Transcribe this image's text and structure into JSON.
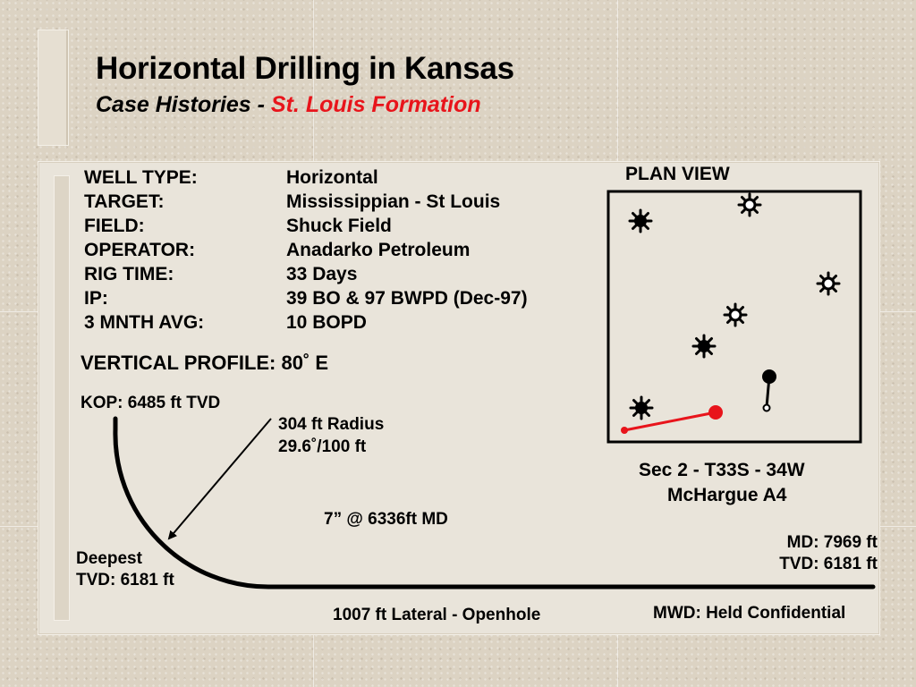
{
  "title": "Horizontal Drilling in Kansas",
  "subtitle": {
    "prefix": "Case Histories - ",
    "highlight": "St. Louis Formation",
    "highlight_color": "#e8141b"
  },
  "well_info": [
    {
      "label": "WELL TYPE:",
      "value": "Horizontal"
    },
    {
      "label": "TARGET:",
      "value": "Mississippian - St Louis"
    },
    {
      "label": "FIELD:",
      "value": "Shuck Field"
    },
    {
      "label": "OPERATOR:",
      "value": "Anadarko Petroleum"
    },
    {
      "label": "RIG TIME:",
      "value": "33 Days"
    },
    {
      "label": "IP:",
      "value": "39 BO & 97 BWPD (Dec-97)"
    },
    {
      "label": "3 MNTH AVG:",
      "value": "10 BOPD"
    }
  ],
  "vertical_profile": {
    "heading": "VERTICAL PROFILE: 80˚ E",
    "kop": "KOP: 6485 ft TVD",
    "radius_line1": "304 ft Radius",
    "radius_line2": "29.6˚/100 ft",
    "casing": "7” @ 6336ft MD",
    "deepest_line1": "Deepest",
    "deepest_line2": "TVD: 6181 ft",
    "md": "MD: 7969 ft",
    "tvd": "TVD: 6181 ft",
    "lateral": "1007 ft Lateral - Openhole",
    "mwd": "MWD: Held Confidential"
  },
  "plan_view": {
    "heading": "PLAN VIEW",
    "section": "Sec 2 - T33S - 34W",
    "lease": "McHargue A4",
    "lateral_color": "#e8141b",
    "symbols": [
      "oil-gas-well",
      "gas-well",
      "oil-gas-well",
      "gas-well",
      "gas-well",
      "oil-gas-well",
      "oil-gas-well"
    ]
  }
}
